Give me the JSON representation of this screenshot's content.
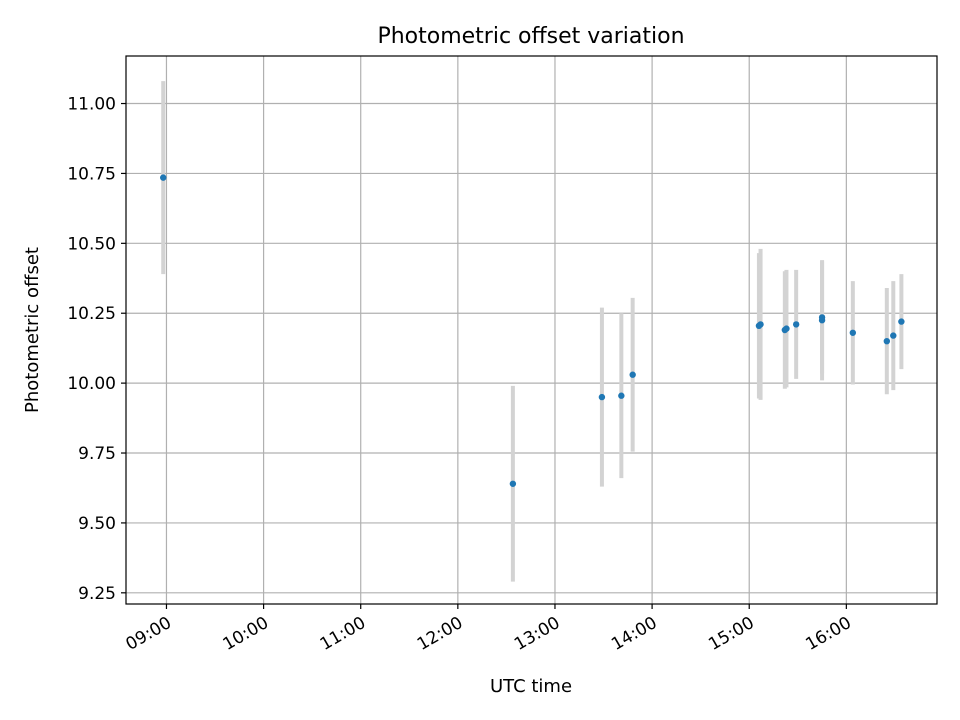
{
  "chart_data": {
    "type": "scatter",
    "title": "Photometric offset variation",
    "xlabel": "UTC time",
    "ylabel": "Photometric offset",
    "x_ticks": [
      "09:00",
      "10:00",
      "11:00",
      "12:00",
      "13:00",
      "14:00",
      "15:00",
      "16:00"
    ],
    "y_ticks": [
      "9.25",
      "9.50",
      "9.75",
      "10.00",
      "10.25",
      "10.50",
      "10.75",
      "11.00"
    ],
    "xlim": [
      "08:35",
      "16:56"
    ],
    "ylim": [
      9.21,
      11.17
    ],
    "grid": true,
    "colors": {
      "point": "#1f77b4",
      "errorbar": "#d3d3d3",
      "grid": "#b0b0b0"
    },
    "series": [
      {
        "points": [
          {
            "x": "08:58",
            "y": 10.735,
            "err": 0.345
          },
          {
            "x": "12:34",
            "y": 9.64,
            "err": 0.35
          },
          {
            "x": "13:29",
            "y": 9.95,
            "err": 0.32
          },
          {
            "x": "13:41",
            "y": 9.955,
            "err": 0.295
          },
          {
            "x": "13:48",
            "y": 10.03,
            "err": 0.275
          },
          {
            "x": "15:06",
            "y": 10.205,
            "err": 0.26
          },
          {
            "x": "15:07",
            "y": 10.21,
            "err": 0.27
          },
          {
            "x": "15:22",
            "y": 10.19,
            "err": 0.21
          },
          {
            "x": "15:23",
            "y": 10.195,
            "err": 0.21
          },
          {
            "x": "15:29",
            "y": 10.21,
            "err": 0.195
          },
          {
            "x": "15:45",
            "y": 10.225,
            "err": 0.215
          },
          {
            "x": "15:45",
            "y": 10.235,
            "err": 0.2
          },
          {
            "x": "16:04",
            "y": 10.18,
            "err": 0.185
          },
          {
            "x": "16:25",
            "y": 10.15,
            "err": 0.19
          },
          {
            "x": "16:29",
            "y": 10.17,
            "err": 0.195
          },
          {
            "x": "16:34",
            "y": 10.22,
            "err": 0.17
          }
        ]
      }
    ]
  }
}
